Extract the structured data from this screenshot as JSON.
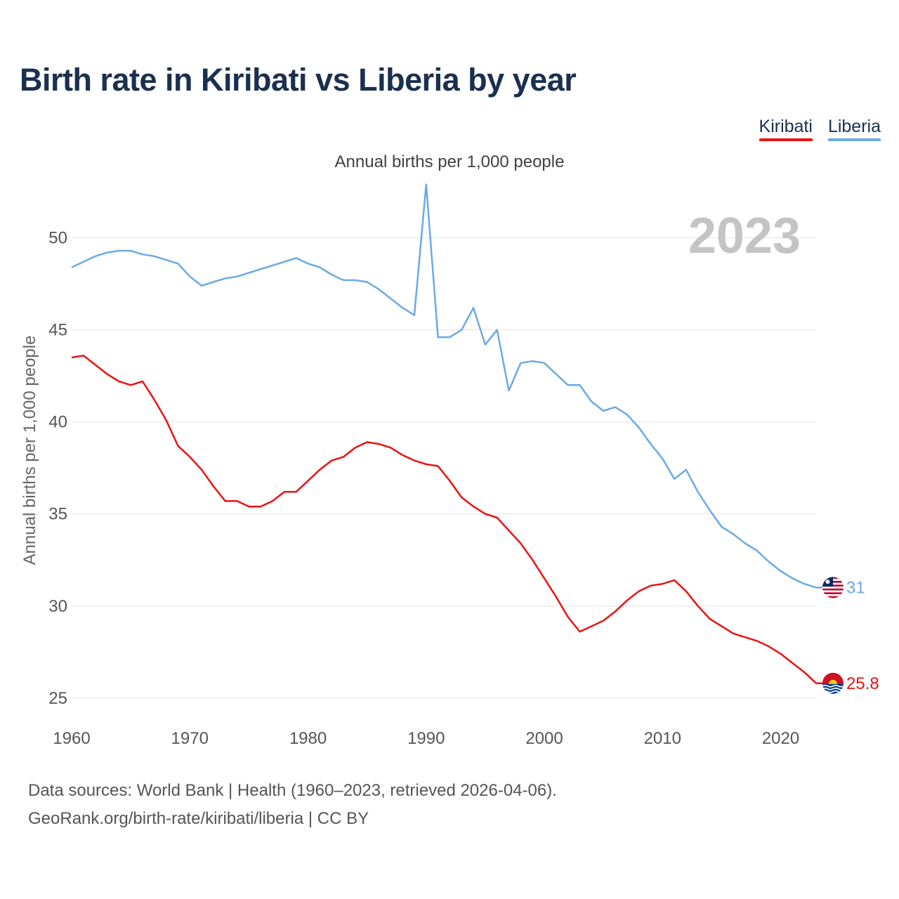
{
  "chart_data": {
    "type": "line",
    "title": "Birth rate in Kiribati vs Liberia by year",
    "subtitle": "Annual births per 1,000 people",
    "ylabel": "Annual births per 1,000 people",
    "xlabel": "",
    "year_label": "2023",
    "xlim": [
      1960,
      2023
    ],
    "ylim": [
      24,
      53
    ],
    "x_ticks": [
      1960,
      1970,
      1980,
      1990,
      2000,
      2010,
      2020
    ],
    "y_ticks": [
      25,
      30,
      35,
      40,
      45,
      50
    ],
    "grid": true,
    "legend_position": "top-right",
    "x": [
      1960,
      1961,
      1962,
      1963,
      1964,
      1965,
      1966,
      1967,
      1968,
      1969,
      1970,
      1971,
      1972,
      1973,
      1974,
      1975,
      1976,
      1977,
      1978,
      1979,
      1980,
      1981,
      1982,
      1983,
      1984,
      1985,
      1986,
      1987,
      1988,
      1989,
      1990,
      1991,
      1992,
      1993,
      1994,
      1995,
      1996,
      1997,
      1998,
      1999,
      2000,
      2001,
      2002,
      2003,
      2004,
      2005,
      2006,
      2007,
      2008,
      2009,
      2010,
      2011,
      2012,
      2013,
      2014,
      2015,
      2016,
      2017,
      2018,
      2019,
      2020,
      2021,
      2022,
      2023
    ],
    "series": [
      {
        "name": "Kiribati",
        "color": "#ee1111",
        "end_label": "25.8",
        "values": [
          43.5,
          43.6,
          43.1,
          42.6,
          42.2,
          42.0,
          42.2,
          41.2,
          40.1,
          38.7,
          38.1,
          37.4,
          36.5,
          35.7,
          35.7,
          35.4,
          35.4,
          35.7,
          36.2,
          36.2,
          36.8,
          37.4,
          37.9,
          38.1,
          38.6,
          38.9,
          38.8,
          38.6,
          38.2,
          37.9,
          37.7,
          37.6,
          36.8,
          35.9,
          35.4,
          35.0,
          34.8,
          34.1,
          33.4,
          32.5,
          31.5,
          30.5,
          29.4,
          28.6,
          28.9,
          29.2,
          29.7,
          30.3,
          30.8,
          31.1,
          31.2,
          31.4,
          30.8,
          30.0,
          29.3,
          28.9,
          28.5,
          28.3,
          28.1,
          27.8,
          27.4,
          26.9,
          26.4,
          25.8
        ]
      },
      {
        "name": "Liberia",
        "color": "#6aaae4",
        "end_label": "31",
        "values": [
          48.4,
          48.7,
          49.0,
          49.2,
          49.3,
          49.3,
          49.1,
          49.0,
          48.8,
          48.6,
          47.9,
          47.4,
          47.6,
          47.8,
          47.9,
          48.1,
          48.3,
          48.5,
          48.7,
          48.9,
          48.6,
          48.4,
          48.0,
          47.7,
          47.7,
          47.6,
          47.2,
          46.7,
          46.2,
          45.8,
          52.9,
          44.6,
          44.6,
          45.0,
          46.2,
          44.2,
          45.0,
          41.7,
          43.2,
          43.3,
          43.2,
          42.6,
          42.0,
          42.0,
          41.1,
          40.6,
          40.8,
          40.4,
          39.7,
          38.8,
          38.0,
          36.9,
          37.4,
          36.2,
          35.2,
          34.3,
          33.9,
          33.4,
          33.0,
          32.4,
          31.9,
          31.5,
          31.2,
          31.0
        ]
      }
    ]
  },
  "sources": {
    "line1": "Data sources: World Bank | Health (1960–2023, retrieved 2026-04-06).",
    "line2": "GeoRank.org/birth-rate/kiribati/liberia | CC BY"
  }
}
